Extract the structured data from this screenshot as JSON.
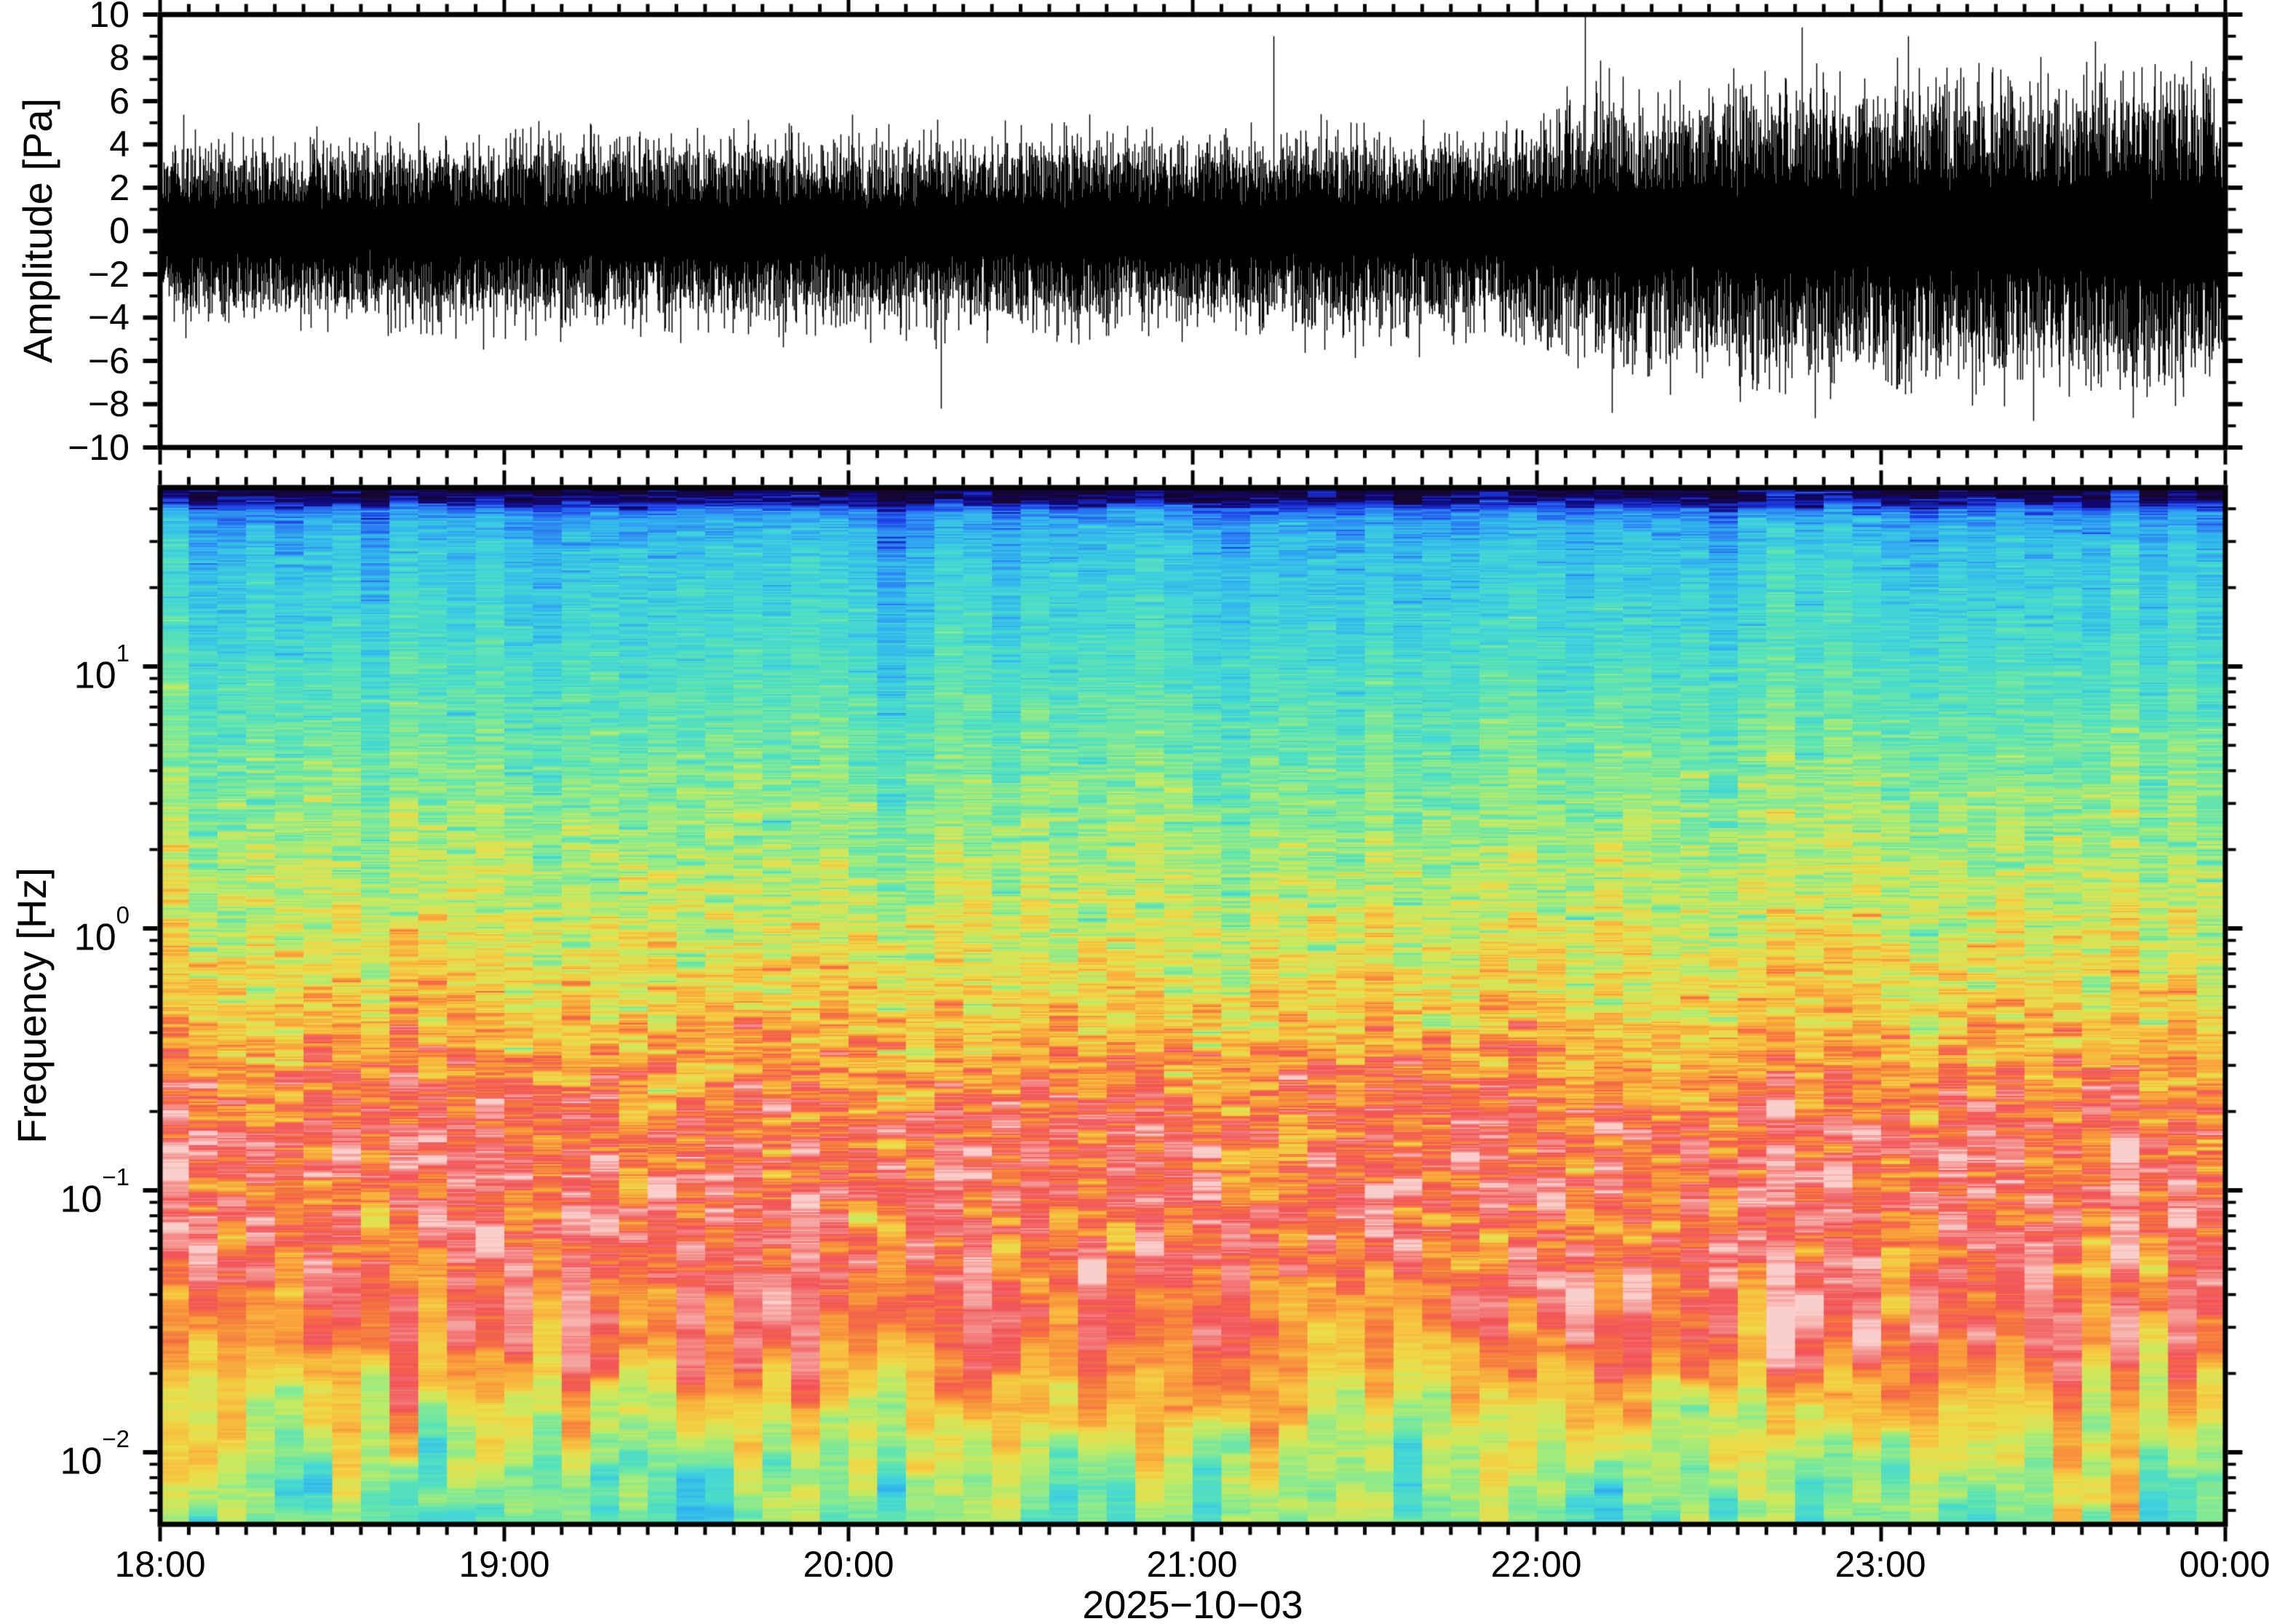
{
  "figure": {
    "date_label": "2025−10−03",
    "x_tick_labels": [
      "18:00",
      "19:00",
      "20:00",
      "21:00",
      "22:00",
      "23:00",
      "00:00"
    ],
    "x_major_tick_interval_minutes": 60,
    "x_minor_tick_interval_minutes": 5,
    "background_color": "#ffffff",
    "frame_color": "#000000"
  },
  "panels": {
    "waveform": {
      "ylabel": "Amplitude [Pa]",
      "ylim": [
        -10,
        10
      ],
      "ytick_labels": [
        "10",
        "8",
        "6",
        "4",
        "2",
        "0",
        "−2",
        "−4",
        "−6",
        "−8",
        "−10"
      ],
      "ytick_values": [
        10,
        8,
        6,
        4,
        2,
        0,
        -2,
        -4,
        -6,
        -8,
        -10
      ],
      "y_minor_tick_step": 1,
      "trace_color": "#000000"
    },
    "spectrogram": {
      "ylabel": "Frequency [Hz]",
      "yscale": "log",
      "ytick_mantissa": "10",
      "ytick_exponents": [
        "1",
        "0",
        "−1",
        "−2"
      ],
      "ytick_values_hz": [
        10,
        1,
        0.1,
        0.01
      ],
      "freq_range_hz": [
        0.0053,
        48
      ]
    }
  },
  "chart_data": [
    {
      "type": "line",
      "name": "infrasound-waveform",
      "xlabel": "2025−10−03",
      "ylabel": "Amplitude [Pa]",
      "x_range": [
        "18:00",
        "00:00"
      ],
      "ylim": [
        -10,
        10
      ],
      "character": "zero-mean broadband pressure noise; background level rises markedly after ~22:00",
      "rms_envelope_pa": {
        "time_fraction": [
          0.0,
          0.3,
          0.6,
          0.64,
          0.68,
          0.75,
          0.85,
          1.0
        ],
        "sigma": [
          0.78,
          0.82,
          0.85,
          0.86,
          1.1,
          1.3,
          1.33,
          1.38
        ]
      },
      "notable_peaks": [
        {
          "time": "20:16",
          "x_fraction": 0.378,
          "amplitude_pa": -8.2
        },
        {
          "time": "21:14",
          "x_fraction": 0.539,
          "amplitude_pa": 9.0
        },
        {
          "time": "22:08",
          "x_fraction": 0.69,
          "amplitude_pa": 10.0
        },
        {
          "time": "22:14",
          "x_fraction": 0.703,
          "amplitude_pa": -8.4
        },
        {
          "time": "22:51",
          "x_fraction": 0.795,
          "amplitude_pa": 9.4
        }
      ],
      "samples_per_column": 46,
      "spike_probability": 0.05,
      "spike_scale_range": [
        3.0,
        5.8
      ],
      "seed": 20251003
    },
    {
      "type": "heatmap",
      "name": "spectrogram",
      "ylabel": "Frequency [Hz]",
      "yscale": "log",
      "ylim_hz": [
        0.0053,
        48
      ],
      "x_range": [
        "18:00",
        "00:00"
      ],
      "time_bins": 72,
      "time_bin_minutes": 5,
      "psd_profile": {
        "log10_f": [
          -2.275,
          -2.1,
          -1.98,
          -1.88,
          -1.78,
          -1.68,
          -1.58,
          -1.48,
          -1.3,
          -1.05,
          -0.85,
          -0.64,
          -0.5,
          -0.36,
          -0.2,
          0.0,
          0.25,
          0.55,
          0.85,
          1.1,
          1.3,
          1.45,
          1.52,
          1.57,
          1.6,
          1.615,
          1.63,
          1.66,
          1.683
        ],
        "level": [
          0.41,
          0.435,
          0.48,
          0.55,
          0.62,
          0.7,
          0.77,
          0.815,
          0.84,
          0.835,
          0.82,
          0.78,
          0.71,
          0.64,
          0.585,
          0.535,
          0.48,
          0.42,
          0.36,
          0.31,
          0.28,
          0.25,
          0.22,
          0.19,
          0.15,
          0.1,
          0.06,
          0.02,
          0.0
        ]
      },
      "band_features": [
        "near-black/navy minimum at top edge (~48 Hz)",
        "blue to cyan 20–40 Hz",
        "cyan-teal 5–20 Hz",
        "green-yellow to yellow 0.7–5 Hz",
        "orange 0.3–0.7 Hz",
        "red with salmon/pink maxima (microbarom band) 0.03–0.3 Hz",
        "orange → yellow → pale green/teal roll-off below 0.02 Hz"
      ],
      "colormap_stops": [
        {
          "t": 0.0,
          "color": "#15052f"
        },
        {
          "t": 0.05,
          "color": "#10077c"
        },
        {
          "t": 0.1,
          "color": "#1b3ae3"
        },
        {
          "t": 0.16,
          "color": "#2b7cf2"
        },
        {
          "t": 0.22,
          "color": "#32b4ee"
        },
        {
          "t": 0.29,
          "color": "#3fd4da"
        },
        {
          "t": 0.36,
          "color": "#58e2b8"
        },
        {
          "t": 0.44,
          "color": "#8cea8c"
        },
        {
          "t": 0.51,
          "color": "#c3ea62"
        },
        {
          "t": 0.58,
          "color": "#ecdc49"
        },
        {
          "t": 0.65,
          "color": "#f7c03e"
        },
        {
          "t": 0.72,
          "color": "#f89c3b"
        },
        {
          "t": 0.78,
          "color": "#f5743f"
        },
        {
          "t": 0.84,
          "color": "#f25359"
        },
        {
          "t": 0.9,
          "color": "#f3827f"
        },
        {
          "t": 0.96,
          "color": "#f7aba7"
        },
        {
          "t": 1.0,
          "color": "#facfcb"
        }
      ],
      "noise_texture": {
        "stripe_amp_high_freq": 0.03,
        "stripe_amp_mid": 0.06,
        "blob_amp_low_freq": 0.095,
        "band_wobble_decades": 0.09,
        "column_offset_sigma": 0.022
      },
      "seed": 7
    }
  ]
}
